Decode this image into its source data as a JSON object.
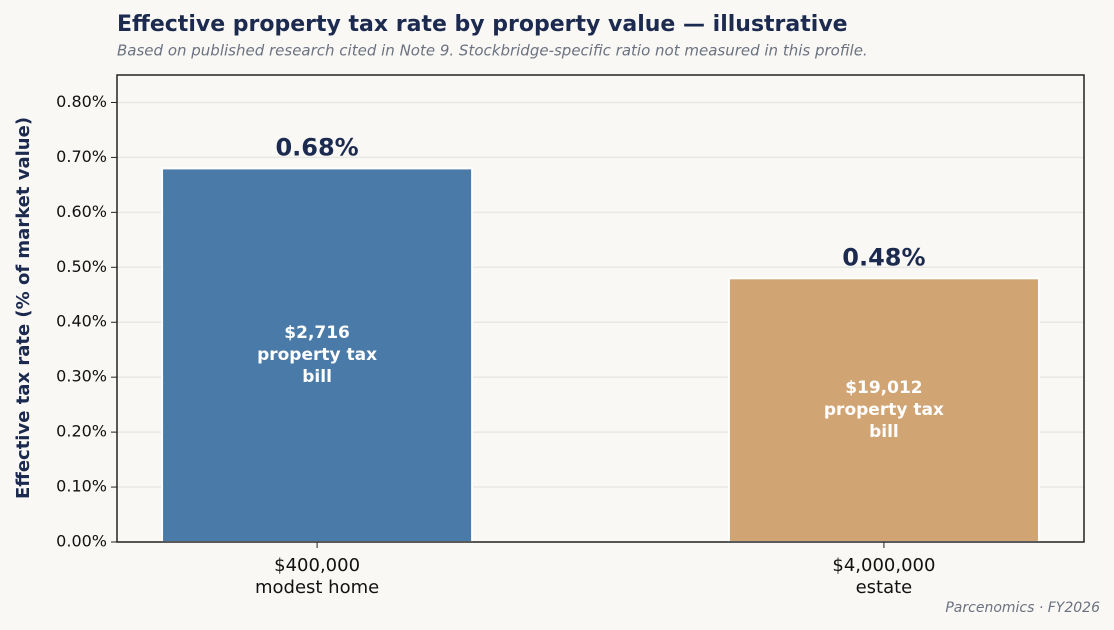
{
  "chart_data": {
    "type": "bar",
    "title": "Effective property tax rate by property value — illustrative",
    "subtitle": "Based on published research cited in Note 9. Stockbridge-specific ratio not measured in this profile.",
    "ylabel": "Effective tax rate (% of market value)",
    "source": "Parcenomics · FY2026",
    "categories": [
      "$400,000\nmodest home",
      "$4,000,000\nestate"
    ],
    "values": [
      0.68,
      0.48
    ],
    "value_labels": [
      "0.68%",
      "0.48%"
    ],
    "bar_annotations": [
      "$2,716\nproperty tax\nbill",
      "$19,012\nproperty tax\nbill"
    ],
    "colors": [
      "#4a7aa7",
      "#d1a474"
    ],
    "ylim": [
      0,
      0.85
    ],
    "yticks": [
      {
        "value": 0,
        "label": "0.00%"
      },
      {
        "value": 0.1,
        "label": "0.10%"
      },
      {
        "value": 0.2,
        "label": "0.20%"
      },
      {
        "value": 0.3,
        "label": "0.30%"
      },
      {
        "value": 0.4,
        "label": "0.40%"
      },
      {
        "value": 0.5,
        "label": "0.50%"
      },
      {
        "value": 0.6,
        "label": "0.60%"
      },
      {
        "value": 0.7,
        "label": "0.70%"
      },
      {
        "value": 0.8,
        "label": "0.80%"
      }
    ],
    "grid": true
  }
}
